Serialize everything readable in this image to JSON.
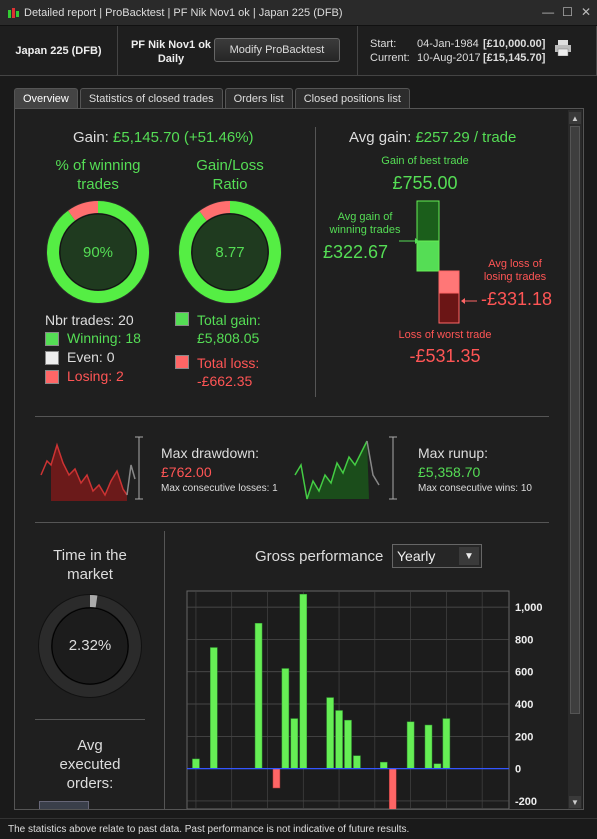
{
  "window": {
    "title": "Detailed report | ProBacktest | PF Nik Nov1 ok | Japan 225 (DFB)"
  },
  "header": {
    "instrument": "Japan 225 (DFB)",
    "strategy_line1": "PF Nik Nov1 ok",
    "strategy_line2": "Daily",
    "modify_label": "Modify ProBacktest",
    "start_label": "Start:",
    "start_date": "04-Jan-1984",
    "start_amount": "[£10,000.00]",
    "current_label": "Current:",
    "current_date": "10-Aug-2017",
    "current_amount": "[£15,145.70]"
  },
  "tabs": [
    "Overview",
    "Statistics of closed trades",
    "Orders list",
    "Closed positions list"
  ],
  "gain": {
    "label": "Gain:",
    "value": "£5,145.70 (+51.46%)",
    "pct_winning_title_1": "% of winning",
    "pct_winning_title_2": "trades",
    "pct_winning_value": "90%",
    "pct_winning_fraction": 0.9,
    "ratio_title_1": "Gain/Loss",
    "ratio_title_2": "Ratio",
    "ratio_value": "8.77",
    "ratio_fraction": 0.8977,
    "nbr_trades": "Nbr trades: 20",
    "winning": "Winning: 18",
    "even": "Even: 0",
    "losing": "Losing: 2",
    "total_gain_1": "Total gain:",
    "total_gain_2": "£5,808.05",
    "total_loss_1": "Total loss:",
    "total_loss_2": "-£662.35"
  },
  "avg": {
    "label": "Avg gain:",
    "value": "£257.29 / trade",
    "best_label": "Gain of best trade",
    "best_value": "£755.00",
    "avg_gain_label_1": "Avg gain of",
    "avg_gain_label_2": "winning trades",
    "avg_gain_value": "£322.67",
    "avg_loss_label_1": "Avg loss of",
    "avg_loss_label_2": "losing trades",
    "avg_loss_value": "-£331.18",
    "worst_label": "Loss of worst trade",
    "worst_value": "-£531.35"
  },
  "drawdown": {
    "label": "Max drawdown:",
    "value": "£762.00",
    "sub": "Max consecutive losses: 1"
  },
  "runup": {
    "label": "Max runup:",
    "value": "£5,358.70",
    "sub": "Max consecutive wins: 10"
  },
  "time_market": {
    "title_1": "Time in the",
    "title_2": "market",
    "value": "2.32%",
    "fraction": 0.0232
  },
  "avg_orders": {
    "title_1": "Avg",
    "title_2": "executed",
    "title_3": "orders:"
  },
  "gross": {
    "label": "Gross performance",
    "period": "Yearly"
  },
  "chart_data": {
    "type": "bar",
    "title": "Gross performance",
    "ylim": [
      -250,
      1100
    ],
    "yticks": [
      "1,000",
      "800",
      "600",
      "400",
      "200",
      "0",
      "-200"
    ],
    "ytick_values": [
      1000,
      800,
      600,
      400,
      200,
      0,
      -200
    ],
    "values": [
      60,
      0,
      750,
      0,
      0,
      0,
      0,
      900,
      0,
      -120,
      620,
      310,
      1080,
      0,
      0,
      440,
      360,
      300,
      80,
      0,
      0,
      40,
      -270,
      0,
      290,
      0,
      270,
      30,
      310,
      0,
      0,
      0,
      0,
      0,
      0
    ],
    "grid": true
  },
  "footer": "The statistics above relate to past data. Past performance is not indicative of future results.",
  "colors": {
    "green": "#55dd55",
    "red": "#ff5555",
    "bar_green": "#66ee55",
    "bar_red": "#ff6666"
  }
}
